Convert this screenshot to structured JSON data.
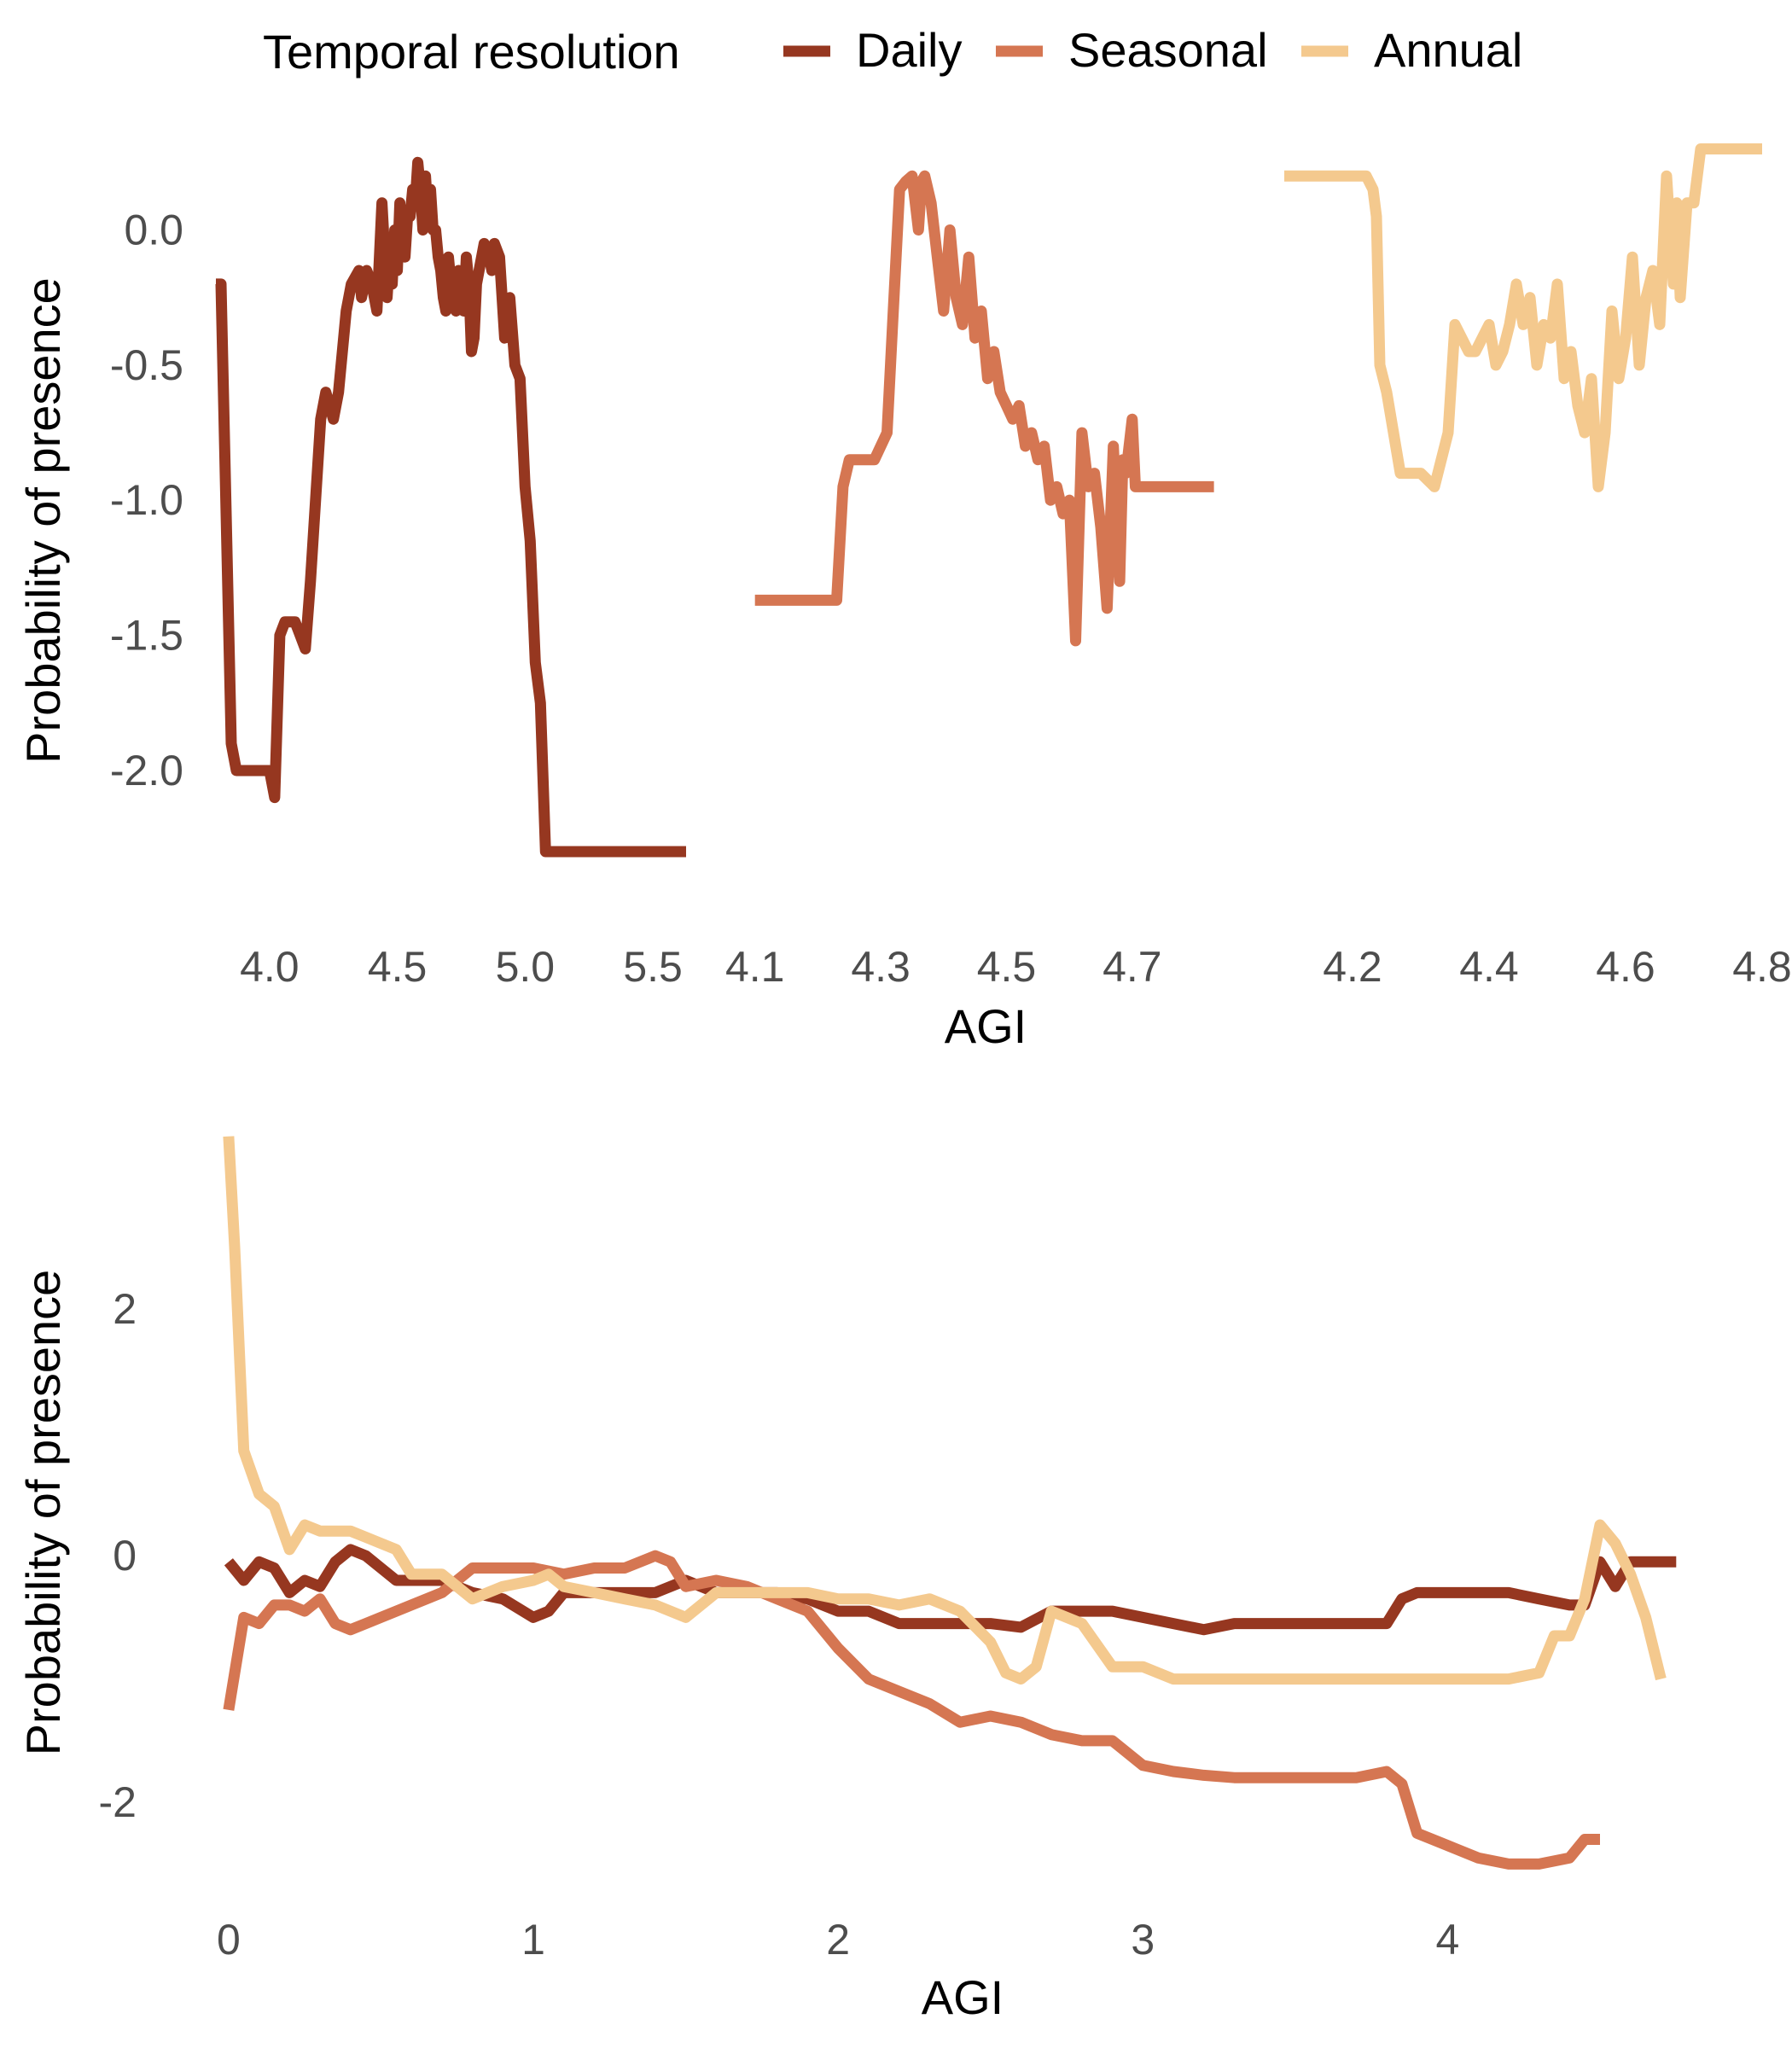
{
  "legend": {
    "title": "Temporal resolution",
    "entries": [
      {
        "label": "Daily",
        "color": "#963720"
      },
      {
        "label": "Seasonal",
        "color": "#D57652"
      },
      {
        "label": "Annual",
        "color": "#F4C98E"
      }
    ],
    "placement": "top"
  },
  "chart_data": [
    {
      "type": "line",
      "panel": "top-left",
      "xlabel": "",
      "ylabel": "Probability of presence",
      "xlim": [
        3.78,
        5.65
      ],
      "ylim": [
        -2.48,
        0.33
      ],
      "xticks": [
        "4.0",
        "4.5",
        "5.0",
        "5.5"
      ],
      "xtick_values": [
        4.0,
        4.5,
        5.0,
        5.5
      ],
      "yticks": [
        "0.0",
        "-0.5",
        "-1.0",
        "-1.5",
        "-2.0"
      ],
      "ytick_values": [
        0.0,
        -0.5,
        -1.0,
        -1.5,
        -2.0
      ],
      "grid": false,
      "series": [
        {
          "name": "Daily",
          "color": "#963720",
          "x": [
            3.79,
            3.81,
            3.85,
            3.87,
            3.9,
            3.93,
            3.98,
            4.0,
            4.02,
            4.04,
            4.06,
            4.08,
            4.1,
            4.12,
            4.14,
            4.16,
            4.18,
            4.2,
            4.22,
            4.25,
            4.27,
            4.3,
            4.32,
            4.35,
            4.36,
            4.38,
            4.4,
            4.42,
            4.44,
            4.46,
            4.47,
            4.48,
            4.49,
            4.5,
            4.51,
            4.52,
            4.53,
            4.54,
            4.55,
            4.56,
            4.57,
            4.58,
            4.59,
            4.6,
            4.61,
            4.62,
            4.63,
            4.64,
            4.65,
            4.66,
            4.67,
            4.68,
            4.69,
            4.7,
            4.71,
            4.72,
            4.73,
            4.74,
            4.75,
            4.76,
            4.77,
            4.78,
            4.79,
            4.8,
            4.81,
            4.82,
            4.83,
            4.84,
            4.85,
            4.86,
            4.87,
            4.88,
            4.9,
            4.92,
            4.94,
            4.96,
            4.98,
            5.0,
            5.02,
            5.04,
            5.06,
            5.08,
            5.1,
            5.12,
            5.14,
            5.16,
            5.18,
            5.2,
            5.22,
            5.25,
            5.3,
            5.4,
            5.5,
            5.63
          ],
          "y": [
            -0.2,
            -0.2,
            -1.9,
            -2.0,
            -2.0,
            -2.0,
            -2.0,
            -2.0,
            -2.1,
            -1.5,
            -1.45,
            -1.45,
            -1.45,
            -1.5,
            -1.55,
            -1.3,
            -1.0,
            -0.7,
            -0.6,
            -0.7,
            -0.6,
            -0.3,
            -0.2,
            -0.15,
            -0.25,
            -0.15,
            -0.2,
            -0.3,
            0.1,
            -0.25,
            -0.1,
            -0.2,
            0.0,
            -0.15,
            0.1,
            0.0,
            -0.1,
            0.05,
            0.05,
            0.15,
            0.1,
            0.25,
            0.15,
            0.0,
            0.2,
            0.05,
            0.15,
            0.0,
            0.0,
            -0.1,
            -0.15,
            -0.25,
            -0.3,
            -0.1,
            -0.2,
            -0.25,
            -0.3,
            -0.15,
            -0.2,
            -0.3,
            -0.1,
            -0.2,
            -0.45,
            -0.4,
            -0.2,
            -0.15,
            -0.1,
            -0.05,
            -0.1,
            -0.1,
            -0.15,
            -0.05,
            -0.1,
            -0.4,
            -0.25,
            -0.5,
            -0.55,
            -0.95,
            -1.15,
            -1.6,
            -1.75,
            -2.3,
            -2.3,
            -2.3,
            -2.3,
            -2.3,
            -2.3,
            -2.3,
            -2.3,
            -2.3,
            -2.3,
            -2.3,
            -2.3,
            -2.3
          ]
        }
      ]
    },
    {
      "type": "line",
      "panel": "top-middle",
      "xlabel": "AGI",
      "ylabel": "",
      "xlim": [
        4.08,
        4.84
      ],
      "ylim": [
        -2.48,
        0.33
      ],
      "xticks": [
        "4.1",
        "4.3",
        "4.5",
        "4.7"
      ],
      "xtick_values": [
        4.1,
        4.3,
        4.5,
        4.7
      ],
      "grid": false,
      "series": [
        {
          "name": "Seasonal",
          "color": "#D57652",
          "x": [
            4.1,
            4.15,
            4.2,
            4.23,
            4.24,
            4.25,
            4.27,
            4.29,
            4.31,
            4.32,
            4.33,
            4.34,
            4.35,
            4.36,
            4.365,
            4.37,
            4.38,
            4.39,
            4.4,
            4.41,
            4.42,
            4.43,
            4.44,
            4.45,
            4.46,
            4.47,
            4.48,
            4.49,
            4.5,
            4.51,
            4.52,
            4.53,
            4.54,
            4.55,
            4.56,
            4.57,
            4.58,
            4.59,
            4.6,
            4.61,
            4.62,
            4.625,
            4.63,
            4.64,
            4.65,
            4.66,
            4.67,
            4.68,
            4.685,
            4.69,
            4.7,
            4.705,
            4.71,
            4.72,
            4.73,
            4.76,
            4.8,
            4.83
          ],
          "y": [
            -1.37,
            -1.37,
            -1.37,
            -1.37,
            -0.95,
            -0.85,
            -0.85,
            -0.85,
            -0.75,
            -0.3,
            0.15,
            0.18,
            0.2,
            0.0,
            0.18,
            0.2,
            0.1,
            -0.1,
            -0.3,
            0.0,
            -0.25,
            -0.35,
            -0.1,
            -0.4,
            -0.3,
            -0.55,
            -0.45,
            -0.6,
            -0.65,
            -0.7,
            -0.65,
            -0.8,
            -0.75,
            -0.85,
            -0.8,
            -1.0,
            -0.95,
            -1.05,
            -1.0,
            -1.52,
            -0.75,
            -0.85,
            -0.95,
            -0.9,
            -1.1,
            -1.4,
            -0.8,
            -1.3,
            -0.85,
            -0.9,
            -0.7,
            -0.95,
            -0.95,
            -0.95,
            -0.95,
            -0.95,
            -0.95,
            -0.95
          ]
        }
      ]
    },
    {
      "type": "line",
      "panel": "top-right",
      "xlabel": "",
      "ylabel": "",
      "xlim": [
        4.1,
        4.8
      ],
      "ylim": [
        -2.48,
        0.33
      ],
      "xticks": [
        "4.2",
        "4.4",
        "4.6",
        "4.8"
      ],
      "xtick_values": [
        4.2,
        4.4,
        4.6,
        4.8
      ],
      "grid": false,
      "series": [
        {
          "name": "Annual",
          "color": "#F4C98E",
          "x": [
            4.1,
            4.15,
            4.2,
            4.22,
            4.23,
            4.235,
            4.24,
            4.25,
            4.26,
            4.27,
            4.28,
            4.3,
            4.32,
            4.34,
            4.35,
            4.37,
            4.38,
            4.39,
            4.4,
            4.41,
            4.42,
            4.43,
            4.44,
            4.45,
            4.46,
            4.47,
            4.48,
            4.49,
            4.5,
            4.51,
            4.52,
            4.53,
            4.54,
            4.55,
            4.56,
            4.57,
            4.58,
            4.59,
            4.6,
            4.61,
            4.62,
            4.63,
            4.64,
            4.65,
            4.66,
            4.67,
            4.675,
            4.68,
            4.69,
            4.7,
            4.71,
            4.72,
            4.73,
            4.74,
            4.75,
            4.78,
            4.8
          ],
          "y": [
            0.2,
            0.2,
            0.2,
            0.2,
            0.15,
            0.05,
            -0.5,
            -0.6,
            -0.75,
            -0.9,
            -0.9,
            -0.9,
            -0.95,
            -0.75,
            -0.35,
            -0.45,
            -0.45,
            -0.4,
            -0.35,
            -0.5,
            -0.45,
            -0.35,
            -0.2,
            -0.35,
            -0.25,
            -0.5,
            -0.35,
            -0.4,
            -0.2,
            -0.55,
            -0.45,
            -0.65,
            -0.75,
            -0.55,
            -0.95,
            -0.75,
            -0.3,
            -0.55,
            -0.4,
            -0.1,
            -0.5,
            -0.25,
            -0.15,
            -0.35,
            0.2,
            -0.2,
            0.1,
            -0.25,
            0.1,
            0.1,
            0.3,
            0.3,
            0.3,
            0.3,
            0.3,
            0.3,
            0.3
          ]
        }
      ]
    },
    {
      "type": "line",
      "panel": "bottom",
      "xlabel": "AGI",
      "ylabel": "Probability of presence",
      "xlim": [
        -0.05,
        4.85
      ],
      "ylim": [
        -2.85,
        3.55
      ],
      "xticks": [
        "0",
        "1",
        "2",
        "3",
        "4"
      ],
      "xtick_values": [
        0,
        1,
        2,
        3,
        4
      ],
      "yticks": [
        "2",
        "0",
        "-2"
      ],
      "ytick_values": [
        2,
        0,
        -2
      ],
      "grid": false,
      "series": [
        {
          "name": "Daily",
          "color": "#963720",
          "x": [
            0.0,
            0.05,
            0.1,
            0.15,
            0.2,
            0.25,
            0.3,
            0.35,
            0.4,
            0.45,
            0.5,
            0.55,
            0.6,
            0.7,
            0.8,
            0.9,
            1.0,
            1.05,
            1.1,
            1.2,
            1.3,
            1.4,
            1.5,
            1.6,
            1.7,
            1.8,
            1.9,
            2.0,
            2.1,
            2.2,
            2.3,
            2.4,
            2.5,
            2.6,
            2.7,
            2.8,
            2.9,
            3.0,
            3.1,
            3.2,
            3.3,
            3.4,
            3.5,
            3.6,
            3.7,
            3.8,
            3.85,
            3.9,
            4.0,
            4.1,
            4.2,
            4.3,
            4.4,
            4.45,
            4.5,
            4.55,
            4.6,
            4.7,
            4.75
          ],
          "y": [
            -0.05,
            -0.2,
            -0.05,
            -0.1,
            -0.3,
            -0.2,
            -0.25,
            -0.05,
            0.05,
            0.0,
            -0.1,
            -0.2,
            -0.2,
            -0.2,
            -0.3,
            -0.35,
            -0.5,
            -0.45,
            -0.3,
            -0.3,
            -0.3,
            -0.3,
            -0.2,
            -0.3,
            -0.3,
            -0.3,
            -0.35,
            -0.45,
            -0.45,
            -0.55,
            -0.55,
            -0.55,
            -0.55,
            -0.58,
            -0.45,
            -0.45,
            -0.45,
            -0.5,
            -0.55,
            -0.6,
            -0.55,
            -0.55,
            -0.55,
            -0.55,
            -0.55,
            -0.55,
            -0.35,
            -0.3,
            -0.3,
            -0.3,
            -0.3,
            -0.35,
            -0.4,
            -0.4,
            -0.05,
            -0.25,
            -0.05,
            -0.05,
            -0.05
          ]
        },
        {
          "name": "Seasonal",
          "color": "#D57652",
          "x": [
            0.0,
            0.05,
            0.1,
            0.15,
            0.2,
            0.25,
            0.3,
            0.35,
            0.4,
            0.45,
            0.5,
            0.55,
            0.6,
            0.7,
            0.8,
            0.9,
            1.0,
            1.1,
            1.2,
            1.3,
            1.4,
            1.45,
            1.5,
            1.6,
            1.7,
            1.8,
            1.9,
            2.0,
            2.1,
            2.2,
            2.3,
            2.4,
            2.5,
            2.6,
            2.7,
            2.8,
            2.9,
            3.0,
            3.1,
            3.2,
            3.3,
            3.4,
            3.5,
            3.6,
            3.7,
            3.8,
            3.85,
            3.9,
            4.0,
            4.1,
            4.2,
            4.3,
            4.4,
            4.45,
            4.5
          ],
          "y": [
            -1.25,
            -0.5,
            -0.55,
            -0.4,
            -0.4,
            -0.45,
            -0.35,
            -0.55,
            -0.6,
            -0.55,
            -0.5,
            -0.45,
            -0.4,
            -0.3,
            -0.1,
            -0.1,
            -0.1,
            -0.15,
            -0.1,
            -0.1,
            0.0,
            -0.05,
            -0.25,
            -0.2,
            -0.25,
            -0.35,
            -0.45,
            -0.75,
            -1.0,
            -1.1,
            -1.2,
            -1.35,
            -1.3,
            -1.35,
            -1.45,
            -1.5,
            -1.5,
            -1.7,
            -1.75,
            -1.78,
            -1.8,
            -1.8,
            -1.8,
            -1.8,
            -1.8,
            -1.75,
            -1.85,
            -2.25,
            -2.35,
            -2.45,
            -2.5,
            -2.5,
            -2.45,
            -2.3,
            -2.3
          ]
        },
        {
          "name": "Annual",
          "color": "#F4C98E",
          "x": [
            0.0,
            0.02,
            0.05,
            0.1,
            0.15,
            0.2,
            0.25,
            0.3,
            0.35,
            0.4,
            0.45,
            0.5,
            0.55,
            0.6,
            0.7,
            0.8,
            0.9,
            1.0,
            1.05,
            1.1,
            1.2,
            1.3,
            1.4,
            1.5,
            1.6,
            1.7,
            1.8,
            1.9,
            2.0,
            2.1,
            2.2,
            2.3,
            2.4,
            2.5,
            2.55,
            2.6,
            2.65,
            2.7,
            2.8,
            2.9,
            3.0,
            3.1,
            3.2,
            3.3,
            3.5,
            3.7,
            3.8,
            3.9,
            4.0,
            4.2,
            4.3,
            4.35,
            4.4,
            4.45,
            4.5,
            4.55,
            4.6,
            4.65,
            4.7
          ],
          "y": [
            3.4,
            2.5,
            0.85,
            0.5,
            0.4,
            0.05,
            0.25,
            0.2,
            0.2,
            0.2,
            0.15,
            0.1,
            0.05,
            -0.15,
            -0.15,
            -0.35,
            -0.25,
            -0.2,
            -0.15,
            -0.25,
            -0.3,
            -0.35,
            -0.4,
            -0.5,
            -0.3,
            -0.3,
            -0.3,
            -0.3,
            -0.35,
            -0.35,
            -0.4,
            -0.35,
            -0.45,
            -0.7,
            -0.95,
            -1.0,
            -0.9,
            -0.45,
            -0.55,
            -0.9,
            -0.9,
            -1.0,
            -1.0,
            -1.0,
            -1.0,
            -1.0,
            -1.0,
            -1.0,
            -1.0,
            -1.0,
            -0.95,
            -0.65,
            -0.65,
            -0.35,
            0.25,
            0.1,
            -0.15,
            -0.5,
            -1.0
          ]
        }
      ]
    }
  ]
}
